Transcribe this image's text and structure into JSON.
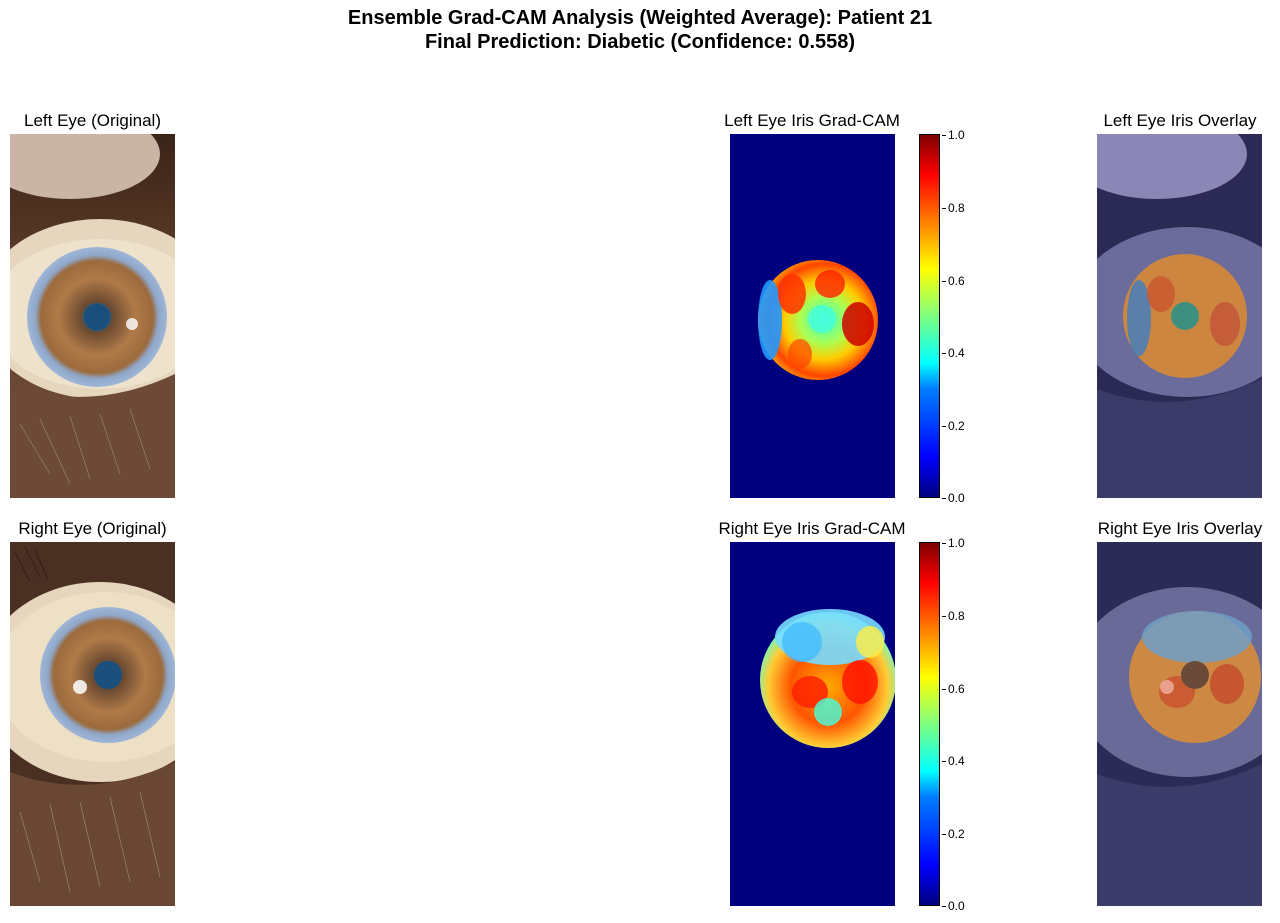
{
  "figure": {
    "title_line1": "Ensemble Grad-CAM Analysis (Weighted Average): Patient 21",
    "title_line2": "Final Prediction: Diabetic (Confidence: 0.558)"
  },
  "rows": [
    {
      "original_title": "Left Eye (Original)",
      "gradcam_title": "Left Eye Iris Grad-CAM",
      "overlay_title": "Left Eye Iris Overlay"
    },
    {
      "original_title": "Right Eye (Original)",
      "gradcam_title": "Right Eye Iris Grad-CAM",
      "overlay_title": "Right Eye Iris Overlay"
    }
  ],
  "colorbar": {
    "colormap": "jet",
    "ticks": [
      "1.0",
      "0.8",
      "0.6",
      "0.4",
      "0.2",
      "0.0"
    ],
    "range": [
      0.0,
      1.0
    ]
  },
  "colors": {
    "background_heat": "#00007f",
    "iris_brown": "#a86d3a",
    "sclera": "#e8d9c0",
    "skin": "#5a3a28"
  }
}
